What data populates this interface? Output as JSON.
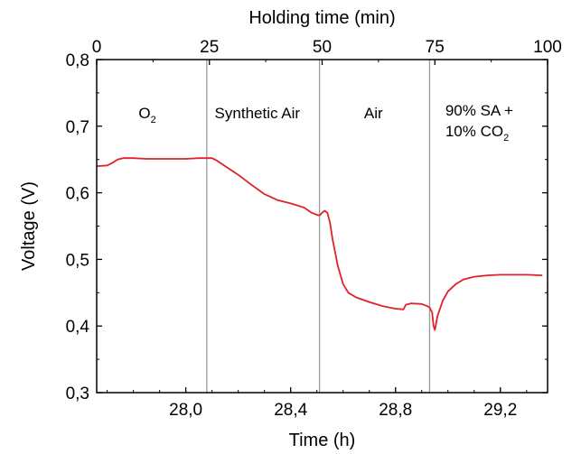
{
  "chart_data": {
    "type": "line",
    "xlabel": "Time (h)",
    "ylabel": "Voltage (V)",
    "x2label": "Holding time (min)",
    "xlim": [
      27.66,
      29.38
    ],
    "ylim": [
      0.3,
      0.8
    ],
    "x2lim": [
      0,
      100
    ],
    "x_ticks": [
      28.0,
      28.4,
      28.8,
      29.2
    ],
    "x_tick_labels": [
      "28,0",
      "28,4",
      "28,8",
      "29,2"
    ],
    "y_ticks": [
      0.3,
      0.4,
      0.5,
      0.6,
      0.7,
      0.8
    ],
    "y_tick_labels": [
      "0,3",
      "0,4",
      "0,5",
      "0,6",
      "0,7",
      "0,8"
    ],
    "x2_ticks": [
      0,
      25,
      50,
      75,
      100
    ],
    "x2_tick_labels": [
      "0",
      "25",
      "50",
      "75",
      "100"
    ],
    "grid": false,
    "line_color": "#e0202a",
    "divider_color": "#9a9a9a",
    "dividers_x": [
      28.08,
      28.51,
      28.93
    ],
    "annotations": [
      {
        "id": "o2",
        "text": "O",
        "sub": "2",
        "after": "",
        "x": 27.82,
        "y": 0.712
      },
      {
        "id": "synth",
        "text": "Synthetic Air",
        "sub": "",
        "after": "",
        "x": 28.11,
        "y": 0.712
      },
      {
        "id": "air",
        "text": "Air",
        "sub": "",
        "after": "",
        "x": 28.68,
        "y": 0.712
      },
      {
        "id": "mix1",
        "text": "90% SA +",
        "sub": "",
        "after": "",
        "x": 28.99,
        "y": 0.716
      },
      {
        "id": "mix2",
        "text": "10% CO",
        "sub": "2",
        "after": "",
        "x": 28.99,
        "y": 0.685
      }
    ],
    "series": [
      {
        "x": [
          27.66,
          27.7,
          27.72,
          27.74,
          27.76,
          27.78,
          27.8,
          27.85,
          27.9,
          27.95,
          28.0,
          28.05,
          28.1,
          28.12,
          28.15,
          28.2,
          28.25,
          28.3,
          28.35,
          28.4,
          28.45,
          28.48,
          28.5,
          28.51,
          28.52,
          28.53,
          28.54,
          28.55,
          28.56,
          28.58,
          28.6,
          28.62,
          28.65,
          28.7,
          28.75,
          28.8,
          28.83,
          28.84,
          28.86,
          28.9,
          28.92,
          28.93,
          28.94,
          28.945,
          28.95,
          28.96,
          28.98,
          29.0,
          29.03,
          29.06,
          29.1,
          29.15,
          29.2,
          29.25,
          29.3,
          29.36
        ],
        "y": [
          0.64,
          0.641,
          0.645,
          0.65,
          0.652,
          0.652,
          0.652,
          0.651,
          0.651,
          0.651,
          0.651,
          0.652,
          0.652,
          0.648,
          0.64,
          0.627,
          0.612,
          0.598,
          0.589,
          0.584,
          0.578,
          0.57,
          0.567,
          0.566,
          0.57,
          0.573,
          0.57,
          0.555,
          0.53,
          0.49,
          0.463,
          0.45,
          0.443,
          0.436,
          0.43,
          0.426,
          0.425,
          0.432,
          0.434,
          0.433,
          0.43,
          0.428,
          0.42,
          0.4,
          0.394,
          0.415,
          0.438,
          0.452,
          0.463,
          0.47,
          0.474,
          0.476,
          0.477,
          0.477,
          0.477,
          0.476
        ]
      }
    ]
  }
}
